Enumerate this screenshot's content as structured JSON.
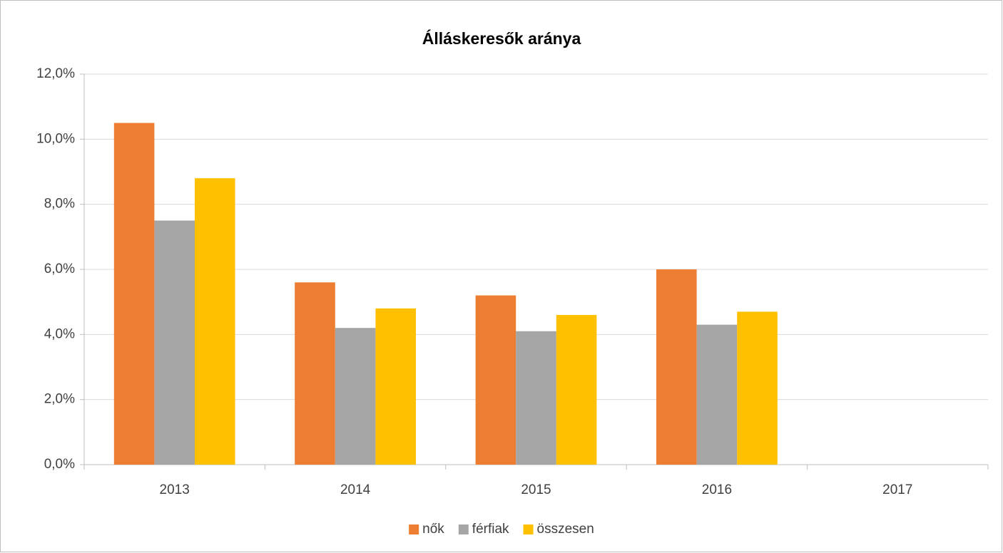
{
  "chart_data": {
    "type": "bar",
    "title": "Álláskeresők aránya",
    "categories": [
      "2013",
      "2014",
      "2015",
      "2016",
      "2017"
    ],
    "series": [
      {
        "name": "nők",
        "color": "#ed7d31",
        "values": [
          10.5,
          5.6,
          5.2,
          6.0,
          null
        ]
      },
      {
        "name": "férfiak",
        "color": "#a5a5a5",
        "values": [
          7.5,
          4.2,
          4.1,
          4.3,
          null
        ]
      },
      {
        "name": "összesen",
        "color": "#ffc000",
        "values": [
          8.8,
          4.8,
          4.6,
          4.7,
          null
        ]
      }
    ],
    "ylim": [
      0,
      12
    ],
    "yticks": [
      {
        "value": 0,
        "label": "0,0%"
      },
      {
        "value": 2,
        "label": "2,0%"
      },
      {
        "value": 4,
        "label": "4,0%"
      },
      {
        "value": 6,
        "label": "6,0%"
      },
      {
        "value": 8,
        "label": "8,0%"
      },
      {
        "value": 10,
        "label": "10,0%"
      },
      {
        "value": 12,
        "label": "12,0%"
      }
    ],
    "grid": true,
    "legend": "bottom"
  }
}
